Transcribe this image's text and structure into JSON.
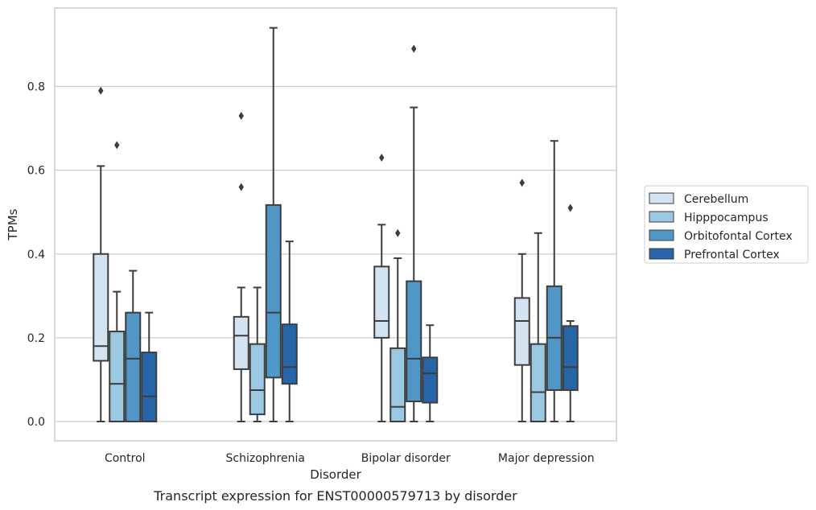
{
  "chart_data": {
    "type": "box",
    "xlabel": "Disorder",
    "ylabel": "TPMs",
    "caption": "Transcript expression for ENST00000579713 by disorder",
    "categories": [
      "Control",
      "Schizophrenia",
      "Bipolar disorder",
      "Major depression"
    ],
    "ylim": [
      -0.045,
      0.985
    ],
    "yticks": [
      0.0,
      0.2,
      0.4,
      0.6,
      0.8
    ],
    "ytick_labels": [
      "0.0",
      "0.2",
      "0.4",
      "0.6",
      "0.8"
    ],
    "grid": true,
    "legend_position": "right",
    "series": [
      {
        "name": "Cerebellum",
        "color": "#d3e3f2",
        "boxes": [
          {
            "whislo": 0.0,
            "q1": 0.145,
            "med": 0.18,
            "q3": 0.4,
            "whishi": 0.61,
            "fliers": [
              0.79
            ]
          },
          {
            "whislo": 0.0,
            "q1": 0.125,
            "med": 0.205,
            "q3": 0.25,
            "whishi": 0.32,
            "fliers": [
              0.73,
              0.56
            ]
          },
          {
            "whislo": 0.0,
            "q1": 0.2,
            "med": 0.24,
            "q3": 0.37,
            "whishi": 0.47,
            "fliers": [
              0.63
            ]
          },
          {
            "whislo": 0.0,
            "q1": 0.135,
            "med": 0.24,
            "q3": 0.295,
            "whishi": 0.4,
            "fliers": [
              0.57
            ]
          }
        ]
      },
      {
        "name": "Hipppocampus",
        "color": "#9ac8e0",
        "boxes": [
          {
            "whislo": 0.0,
            "q1": 0.0,
            "med": 0.09,
            "q3": 0.215,
            "whishi": 0.31,
            "fliers": [
              0.66
            ]
          },
          {
            "whislo": 0.0,
            "q1": 0.017,
            "med": 0.075,
            "q3": 0.185,
            "whishi": 0.32,
            "fliers": []
          },
          {
            "whislo": 0.0,
            "q1": 0.0,
            "med": 0.035,
            "q3": 0.175,
            "whishi": 0.39,
            "fliers": [
              0.45
            ]
          },
          {
            "whislo": 0.0,
            "q1": 0.0,
            "med": 0.07,
            "q3": 0.185,
            "whishi": 0.45,
            "fliers": []
          }
        ]
      },
      {
        "name": "Orbitofontal Cortex",
        "color": "#5096c6",
        "boxes": [
          {
            "whislo": 0.0,
            "q1": 0.0,
            "med": 0.15,
            "q3": 0.26,
            "whishi": 0.36,
            "fliers": []
          },
          {
            "whislo": 0.0,
            "q1": 0.105,
            "med": 0.26,
            "q3": 0.517,
            "whishi": 0.94,
            "fliers": []
          },
          {
            "whislo": 0.0,
            "q1": 0.048,
            "med": 0.15,
            "q3": 0.335,
            "whishi": 0.75,
            "fliers": [
              0.89
            ]
          },
          {
            "whislo": 0.0,
            "q1": 0.075,
            "med": 0.2,
            "q3": 0.323,
            "whishi": 0.67,
            "fliers": []
          }
        ]
      },
      {
        "name": "Prefrontal Cortex",
        "color": "#2666a8",
        "boxes": [
          {
            "whislo": 0.0,
            "q1": 0.0,
            "med": 0.06,
            "q3": 0.165,
            "whishi": 0.26,
            "fliers": []
          },
          {
            "whislo": 0.0,
            "q1": 0.09,
            "med": 0.13,
            "q3": 0.232,
            "whishi": 0.43,
            "fliers": []
          },
          {
            "whislo": 0.0,
            "q1": 0.045,
            "med": 0.115,
            "q3": 0.153,
            "whishi": 0.23,
            "fliers": []
          },
          {
            "whislo": 0.0,
            "q1": 0.075,
            "med": 0.13,
            "q3": 0.228,
            "whishi": 0.24,
            "fliers": [
              0.51
            ]
          }
        ]
      }
    ]
  }
}
